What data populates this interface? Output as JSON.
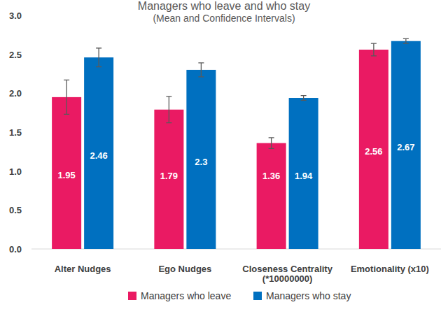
{
  "chart_data": {
    "type": "bar",
    "title": "Managers who leave and who stay",
    "subtitle": "(Mean and Confidence Intervals)",
    "categories": [
      "Alter Nudges",
      "Ego Nudges",
      "Closeness Centrality\n(*10000000)",
      "Emotionality (x10)"
    ],
    "series": [
      {
        "name": "Managers who leave",
        "color": "#ea1a63",
        "values": [
          1.95,
          1.79,
          1.36,
          2.56
        ],
        "errors": [
          0.22,
          0.17,
          0.07,
          0.08
        ]
      },
      {
        "name": "Managers who stay",
        "color": "#0070c0",
        "values": [
          2.46,
          2.3,
          1.94,
          2.67
        ],
        "errors": [
          0.12,
          0.09,
          0.03,
          0.03
        ]
      }
    ],
    "ylim": [
      0,
      3
    ],
    "yticks": [
      {
        "value": 0,
        "label": "0.0"
      },
      {
        "value": 0.5,
        "label": "0.5"
      },
      {
        "value": 1,
        "label": "1.0"
      },
      {
        "value": 1.5,
        "label": "1.5"
      },
      {
        "value": 2,
        "label": "2.0"
      },
      {
        "value": 2.5,
        "label": "2.5"
      },
      {
        "value": 3,
        "label": "3.0"
      }
    ],
    "grid": false,
    "legend": "bottom",
    "data_labels": true
  }
}
